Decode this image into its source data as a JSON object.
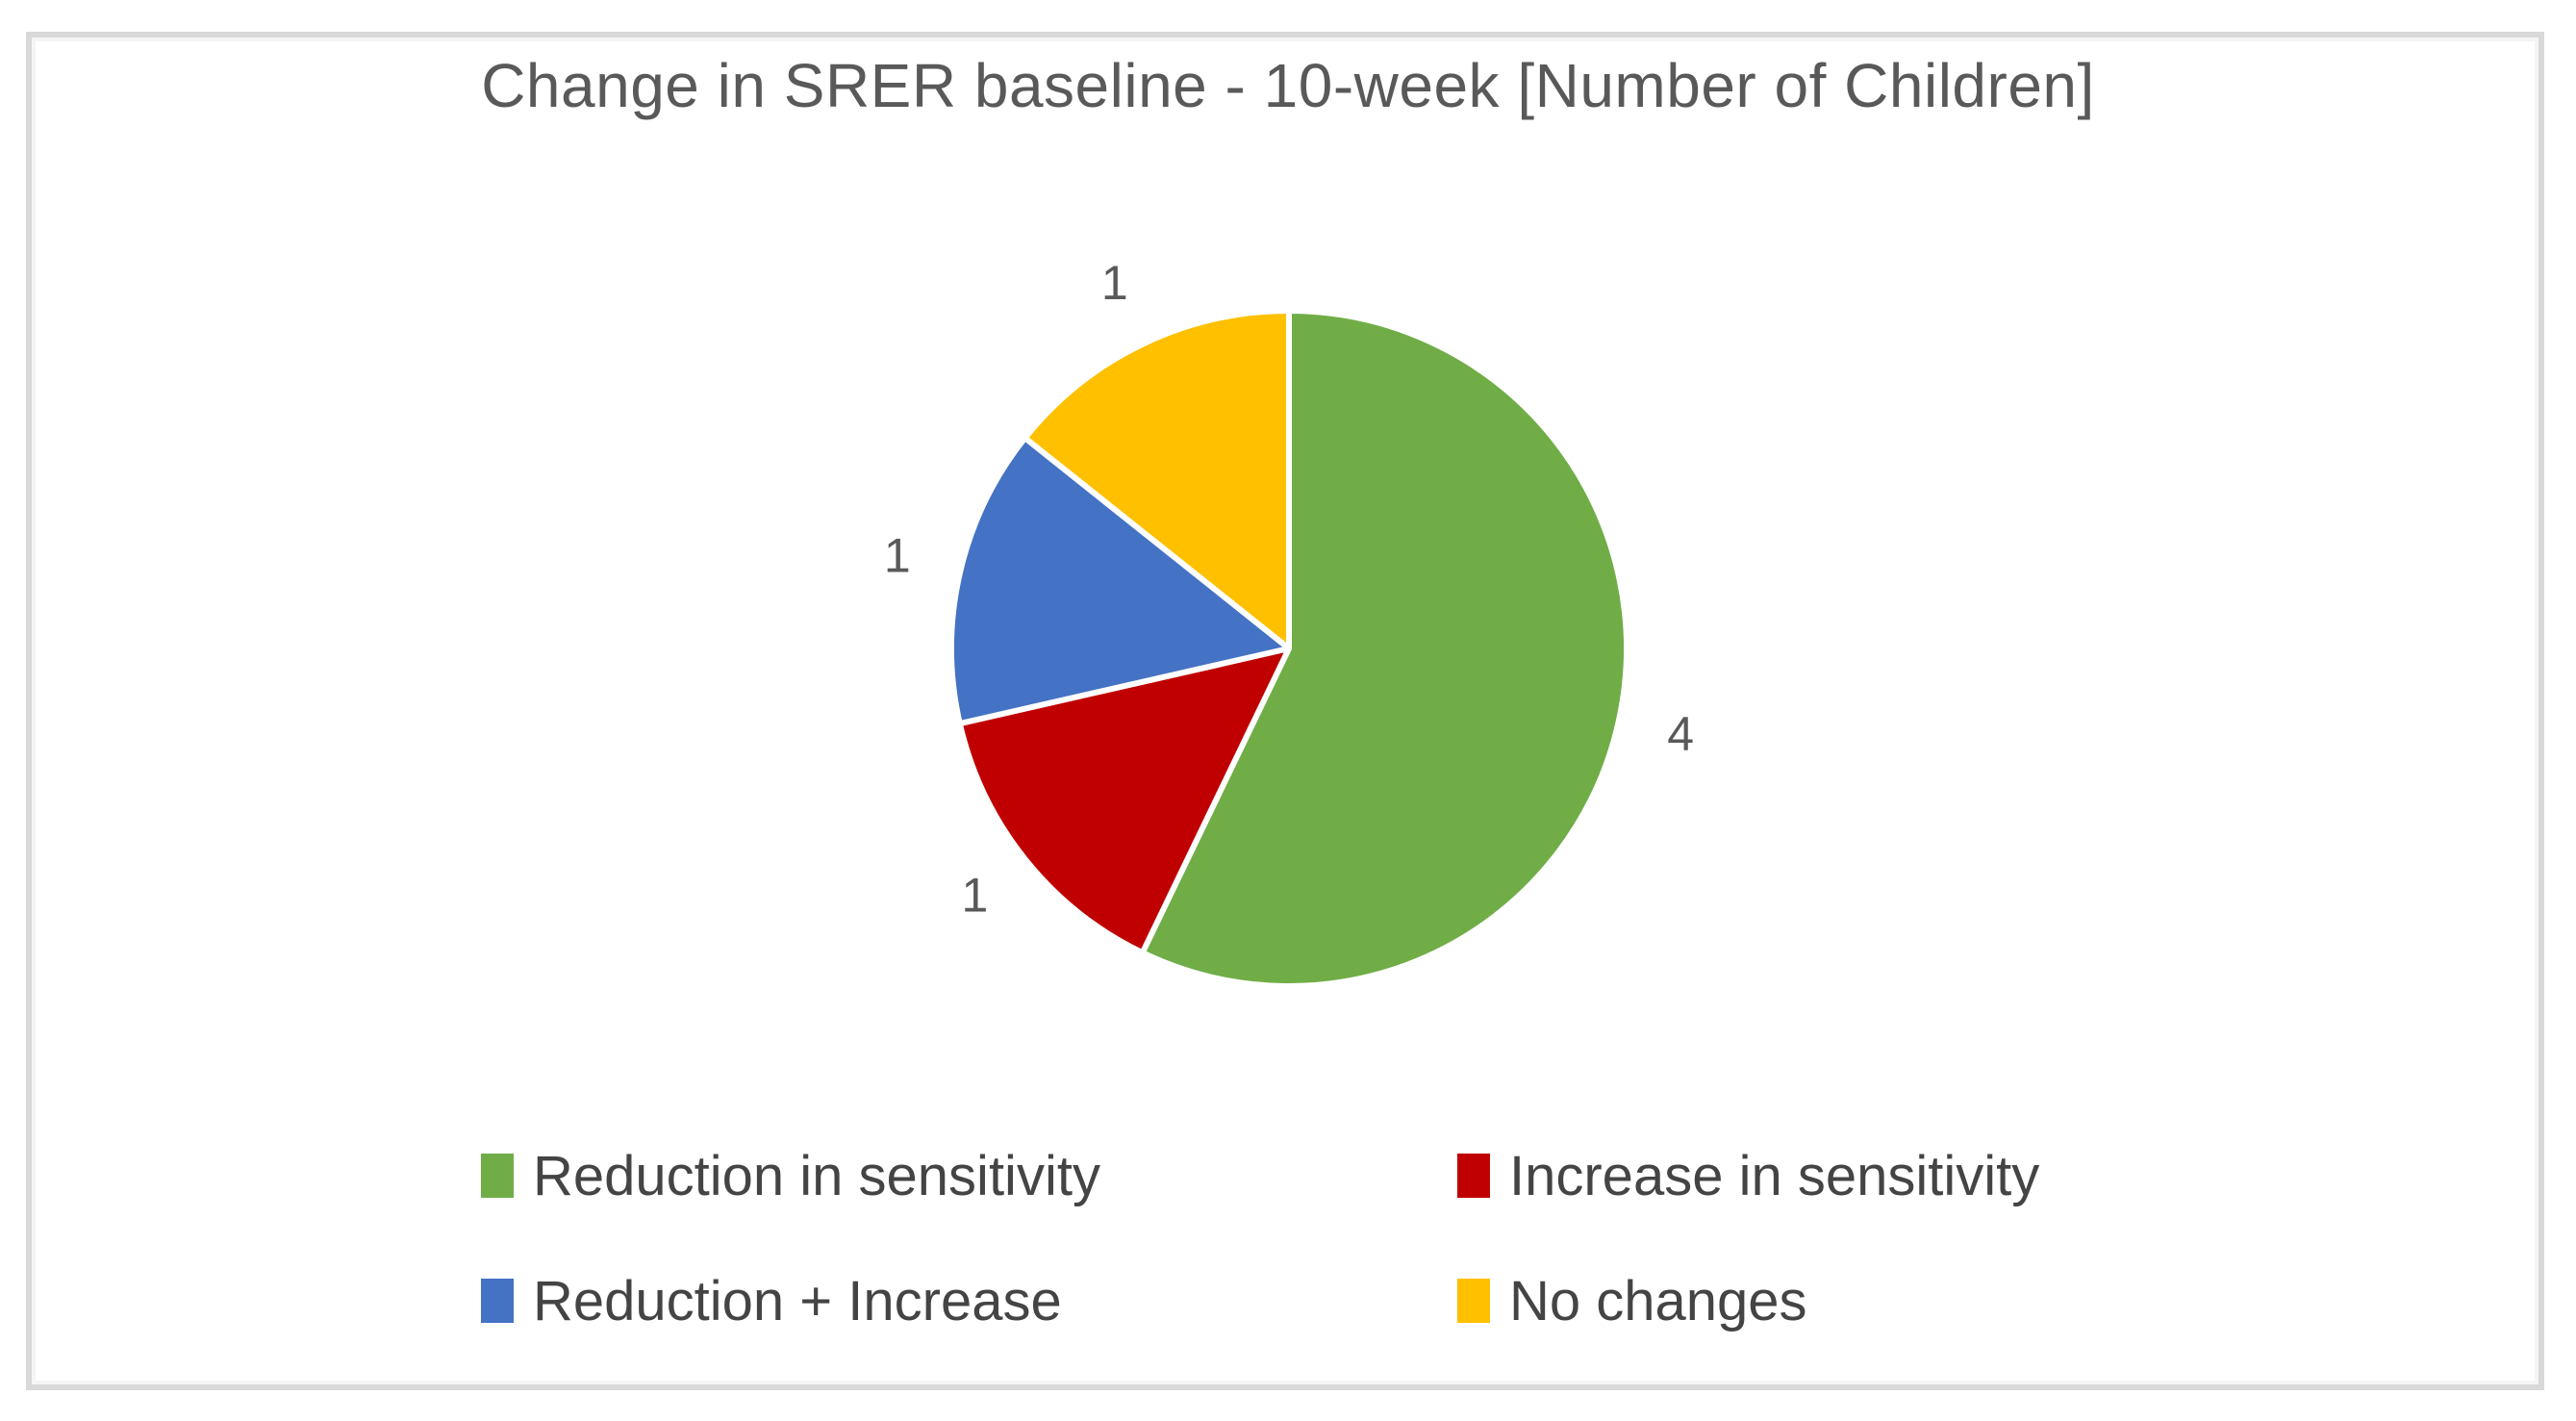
{
  "chart_data": {
    "type": "pie",
    "title": "Change in SRER baseline - 10-week [Number of Children]",
    "categories": [
      "Reduction in sensitivity",
      "Increase in sensitivity",
      "Reduction + Increase",
      "No changes"
    ],
    "values": [
      4,
      1,
      1,
      1
    ],
    "slices": [
      {
        "label": "Reduction in sensitivity",
        "value": 4,
        "data_label": "4",
        "color": "#70AD47"
      },
      {
        "label": "Increase in sensitivity",
        "value": 1,
        "data_label": "1",
        "color": "#C00000"
      },
      {
        "label": "Reduction + Increase",
        "value": 1,
        "data_label": "1",
        "color": "#4472C4"
      },
      {
        "label": "No changes",
        "value": 1,
        "data_label": "1",
        "color": "#FFC000"
      }
    ],
    "start_angle_deg": 0,
    "direction": "clockwise",
    "legend_position": "bottom",
    "legend_order": [
      "Reduction in sensitivity",
      "Increase in sensitivity",
      "Reduction + Increase",
      "No changes"
    ],
    "data_labels_position": "outside",
    "title_color": "#595959",
    "data_label_color": "#595959",
    "slice_separator_color": "#FFFFFF"
  }
}
